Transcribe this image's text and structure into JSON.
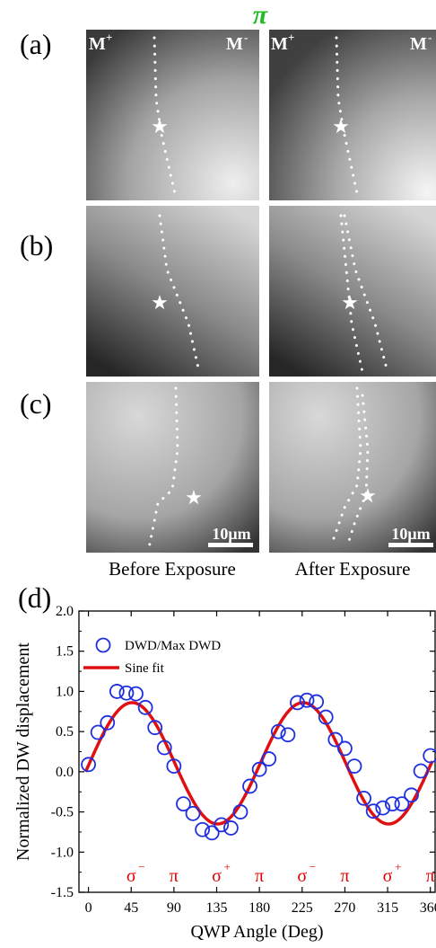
{
  "figure": {
    "top_label": "π",
    "panels": [
      {
        "label": "(a)",
        "left_markers": [
          "M",
          "+"
        ],
        "right_markers": [
          "M",
          "-"
        ]
      },
      {
        "label": "(b)"
      },
      {
        "label": "(c)",
        "scale_bar": "10μm"
      }
    ],
    "captions": {
      "before": "Before Exposure",
      "after": "After Exposure"
    },
    "colors": {
      "top_label": "#22bb22",
      "data_markers": "#1f2fe0",
      "fit": "#e01010",
      "annotations": "#e00000"
    }
  },
  "chart_data": {
    "label": "(d)",
    "type": "scatter",
    "xlabel": "QWP Angle (Deg)",
    "ylabel": "Normalized DW displacement",
    "xlim": [
      -10,
      365
    ],
    "ylim": [
      -1.5,
      2.0
    ],
    "xticks": [
      0,
      45,
      90,
      135,
      180,
      225,
      270,
      315,
      360
    ],
    "yticks": [
      -1.5,
      -1.0,
      -0.5,
      0.0,
      0.5,
      1.0,
      1.5,
      2.0
    ],
    "ytick_labels": [
      "-1.5",
      "-1.0",
      "-0.5",
      "0.0",
      "0.5",
      "1.0",
      "1.5",
      "2.0"
    ],
    "legend_position": "top-left",
    "series": [
      {
        "name": "DWD/Max DWD",
        "kind": "points",
        "x": [
          0,
          10,
          20,
          30,
          40,
          50,
          60,
          70,
          80,
          90,
          100,
          110,
          120,
          130,
          140,
          150,
          160,
          170,
          180,
          190,
          200,
          210,
          220,
          230,
          240,
          250,
          260,
          270,
          280,
          290,
          300,
          310,
          320,
          330,
          340,
          350,
          360
        ],
        "y": [
          0.09,
          0.49,
          0.61,
          1.0,
          0.98,
          0.97,
          0.8,
          0.55,
          0.3,
          0.07,
          -0.4,
          -0.52,
          -0.72,
          -0.76,
          -0.66,
          -0.7,
          -0.5,
          -0.18,
          0.03,
          0.16,
          0.5,
          0.46,
          0.86,
          0.89,
          0.87,
          0.68,
          0.4,
          0.29,
          0.07,
          -0.33,
          -0.49,
          -0.45,
          -0.4,
          -0.4,
          -0.29,
          0.01,
          0.2
        ]
      },
      {
        "name": "Sine fit",
        "kind": "line",
        "model": {
          "offset": 0.105,
          "amplitude": 0.755,
          "period_deg": 180,
          "peak_deg": 46
        }
      }
    ],
    "annotations": [
      {
        "x": 45,
        "symbol": "σ",
        "sup": "−"
      },
      {
        "x": 90,
        "symbol": "π",
        "sup": ""
      },
      {
        "x": 135,
        "symbol": "σ",
        "sup": "+"
      },
      {
        "x": 180,
        "symbol": "π",
        "sup": ""
      },
      {
        "x": 225,
        "symbol": "σ",
        "sup": "−"
      },
      {
        "x": 270,
        "symbol": "π",
        "sup": ""
      },
      {
        "x": 315,
        "symbol": "σ",
        "sup": "+"
      },
      {
        "x": 360,
        "symbol": "π",
        "sup": ""
      }
    ]
  }
}
